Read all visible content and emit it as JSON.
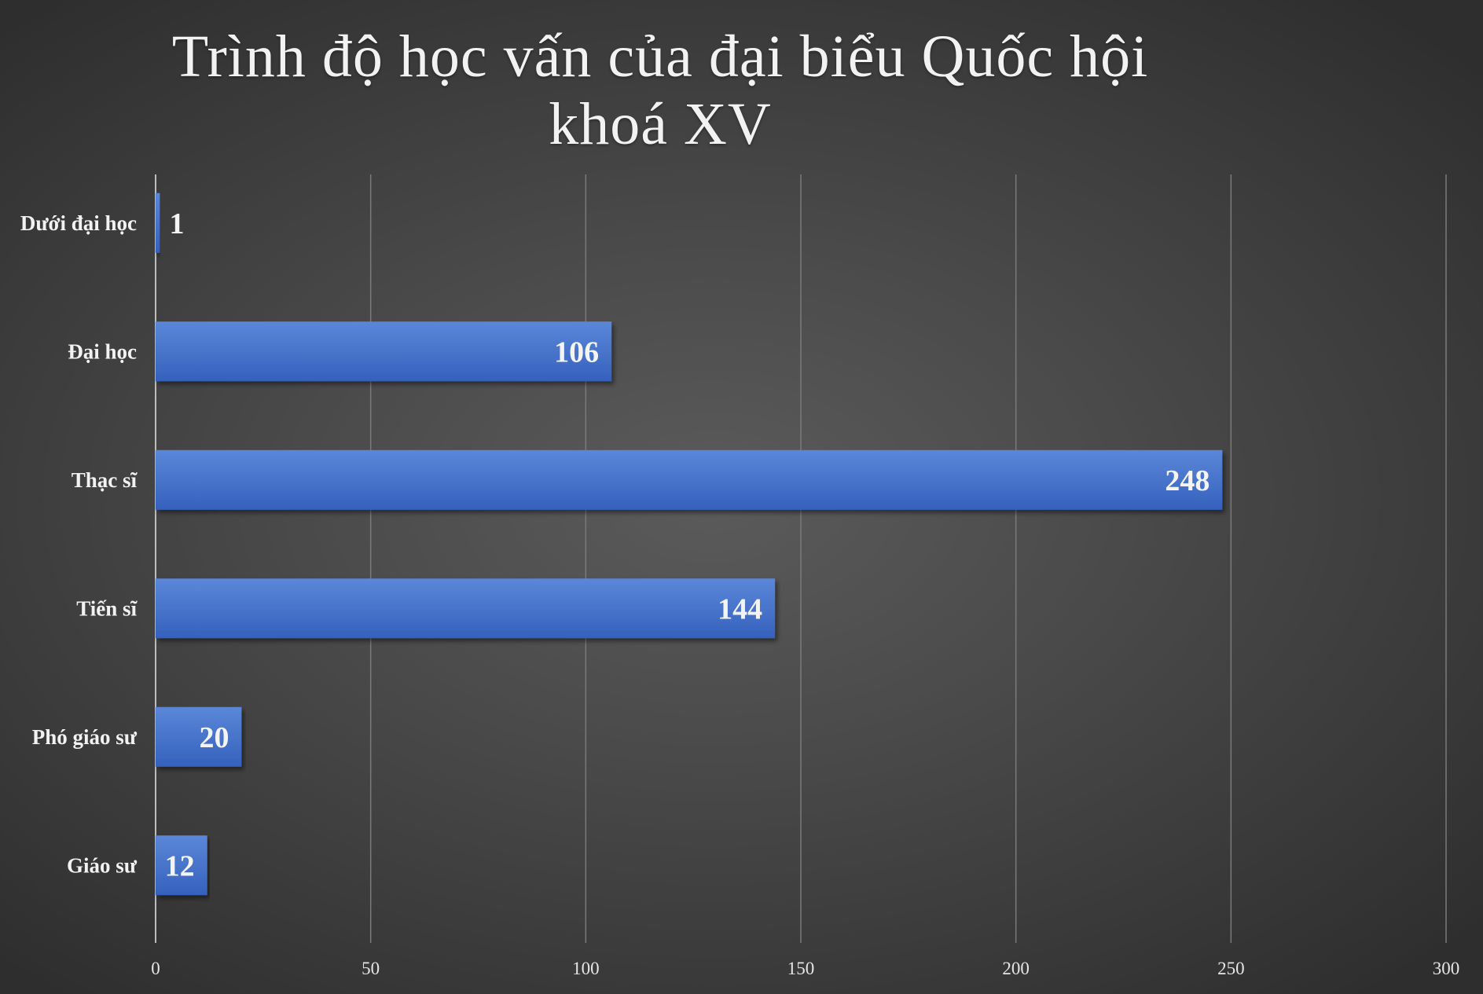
{
  "chart_data": {
    "type": "bar",
    "orientation": "horizontal",
    "title_lines": [
      "Trình độ học vấn của đại biểu Quốc hội",
      "khoá XV"
    ],
    "categories": [
      "Dưới đại học",
      "Đại học",
      "Thạc sĩ",
      "Tiến sĩ",
      "Phó giáo sư",
      "Giáo sư"
    ],
    "values": [
      1,
      106,
      248,
      144,
      20,
      12
    ],
    "xlim": [
      0,
      300
    ],
    "xticks": [
      0,
      50,
      100,
      150,
      200,
      250,
      300
    ],
    "grid": "vertical",
    "data_labels": true,
    "legend": "none"
  },
  "colors": {
    "bar_top": "#5b87d8",
    "bar_bottom": "#3561bd",
    "gridline": "#7a7a7a",
    "axis": "#bdbdbd",
    "background": "#4a4a4a"
  }
}
